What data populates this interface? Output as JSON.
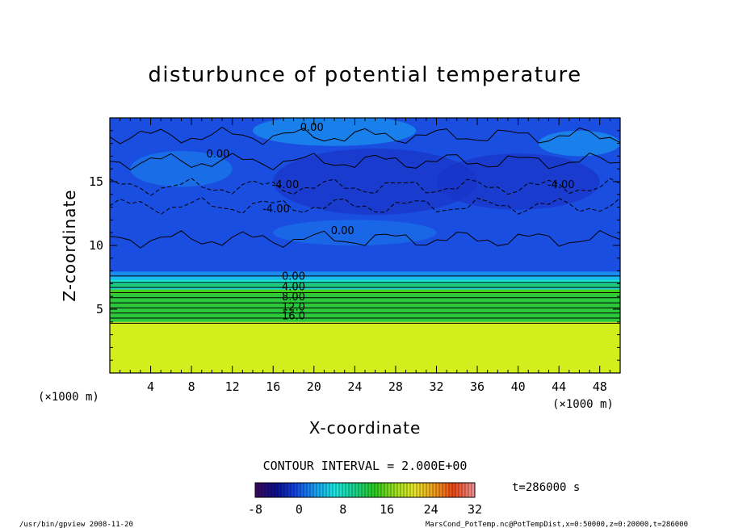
{
  "chart_data": {
    "type": "heatmap",
    "title": "disturbunce of potential temperature",
    "xlabel": "X-coordinate",
    "ylabel": "Z-coordinate",
    "x_unit": "(×1000 m)",
    "x_unit_right": "(×1000 m)",
    "xlim": [
      0,
      50
    ],
    "ylim": [
      0,
      20
    ],
    "x_ticks": [
      4,
      8,
      12,
      16,
      20,
      24,
      28,
      32,
      36,
      40,
      44,
      48
    ],
    "y_ticks": [
      5,
      10,
      15
    ],
    "contour_interval": "CONTOUR INTERVAL = 2.000E+00",
    "time_label": "t=286000 s",
    "colorbar": {
      "range": [
        -8,
        32
      ],
      "tick_labels": [
        "-8",
        "0",
        "8",
        "16",
        "24",
        "32"
      ],
      "colors": [
        "#3a0a5e",
        "#0a0f8c",
        "#1446e6",
        "#1aa0f0",
        "#19e8e0",
        "#1ad28c",
        "#28c81e",
        "#9be11e",
        "#e6e628",
        "#f0a01e",
        "#eb4614",
        "#f08c8c"
      ]
    },
    "layers": [
      {
        "z_range": [
          0,
          4
        ],
        "value": 20,
        "color": "#d2ee1c"
      },
      {
        "z_range": [
          4,
          6.5
        ],
        "value": 10,
        "color": "#2cc83c"
      },
      {
        "z_range": [
          6.5,
          7.6
        ],
        "value": 2,
        "color": "#1ad4e6"
      },
      {
        "z_range": [
          7.6,
          20
        ],
        "value": -3,
        "color": "#1a4ee0"
      }
    ],
    "contour_labels": [
      {
        "x": 18.0,
        "z": 7.3,
        "text": "0.00"
      },
      {
        "x": 18.0,
        "z": 6.5,
        "text": "4.00"
      },
      {
        "x": 18.0,
        "z": 5.7,
        "text": "8.00"
      },
      {
        "x": 18.0,
        "z": 4.9,
        "text": "12.0"
      },
      {
        "x": 18.0,
        "z": 4.2,
        "text": "16.0"
      },
      {
        "x": 19.8,
        "z": 19.0,
        "text": "0.00"
      },
      {
        "x": 10.6,
        "z": 16.9,
        "text": "0.00"
      },
      {
        "x": 17.2,
        "z": 14.5,
        "text": "-4.00"
      },
      {
        "x": 16.3,
        "z": 12.6,
        "text": "-4.00"
      },
      {
        "x": 44.2,
        "z": 14.5,
        "text": "-4.00"
      },
      {
        "x": 22.8,
        "z": 10.9,
        "text": "0.00"
      }
    ],
    "footer_left": "/usr/bin/gpview   2008-11-20",
    "footer_right": "MarsCond_PotTemp.nc@PotTempDist,x=0:50000,z=0:20000,t=286000"
  }
}
